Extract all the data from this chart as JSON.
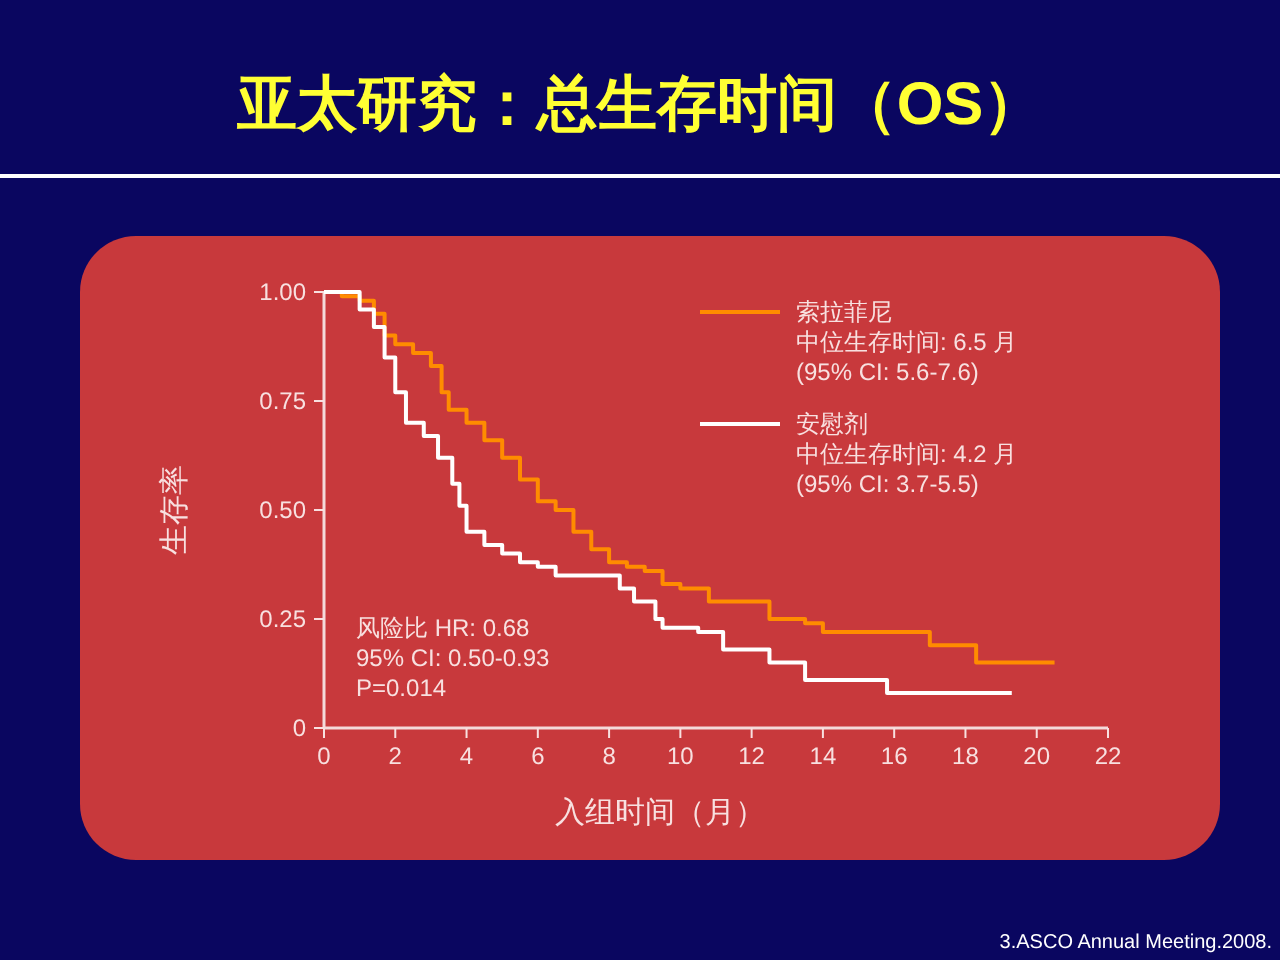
{
  "chart_data": {
    "type": "step",
    "title": "亚太研究：总生存时间（OS）",
    "xlabel": "入组时间（月）",
    "ylabel": "生存率",
    "xlim": [
      0,
      22
    ],
    "xticks": [
      0,
      2,
      4,
      6,
      8,
      10,
      12,
      14,
      16,
      18,
      20,
      22
    ],
    "ylim": [
      0,
      1
    ],
    "yticks": [
      {
        "value": 1,
        "label": "1.00"
      },
      {
        "value": 0.75,
        "label": "0.75"
      },
      {
        "value": 0.5,
        "label": "0.50"
      },
      {
        "value": 0.25,
        "label": "0.25"
      },
      0
    ],
    "grid": false,
    "legend": "top right",
    "series": [
      {
        "name": "索拉菲尼",
        "color": "#ff8c00",
        "x": [
          0,
          0.5,
          1.0,
          1.4,
          1.7,
          2.0,
          2.5,
          3.0,
          3.3,
          3.5,
          4.0,
          4.5,
          5.0,
          5.5,
          6.0,
          6.5,
          7.0,
          7.5,
          8.0,
          8.5,
          9.0,
          9.5,
          10.0,
          10.8,
          12.5,
          13.5,
          14.0,
          17.0,
          18.3,
          20.5
        ],
        "values": [
          1.0,
          0.99,
          0.98,
          0.95,
          0.9,
          0.88,
          0.86,
          0.83,
          0.77,
          0.73,
          0.7,
          0.66,
          0.62,
          0.57,
          0.52,
          0.5,
          0.45,
          0.41,
          0.38,
          0.37,
          0.36,
          0.33,
          0.32,
          0.29,
          0.25,
          0.24,
          0.22,
          0.19,
          0.15,
          0.15
        ]
      },
      {
        "name": "安慰剂",
        "color": "#ffffff",
        "x": [
          0,
          0.8,
          1.0,
          1.4,
          1.7,
          2.0,
          2.3,
          2.8,
          3.2,
          3.6,
          3.8,
          4.0,
          4.5,
          5.0,
          5.5,
          6.0,
          6.5,
          8.0,
          8.3,
          8.7,
          9.3,
          9.5,
          10.5,
          11.2,
          12.5,
          13.5,
          15.8,
          19.3
        ],
        "values": [
          1.0,
          1.0,
          0.96,
          0.92,
          0.85,
          0.77,
          0.7,
          0.67,
          0.62,
          0.56,
          0.51,
          0.45,
          0.42,
          0.4,
          0.38,
          0.37,
          0.35,
          0.35,
          0.32,
          0.29,
          0.25,
          0.23,
          0.22,
          0.18,
          0.15,
          0.11,
          0.08,
          0.08
        ]
      }
    ],
    "annotations": [
      "中位生存时间: 6.5 月",
      "(95% CI: 5.6-7.6)",
      "中位生存时间: 4.2 月",
      "(95% CI: 3.7-5.5)",
      "风险比 HR: 0.68",
      "95% CI: 0.50-0.93",
      "P=0.014",
      "3.ASCO Annual Meeting.2008."
    ]
  }
}
